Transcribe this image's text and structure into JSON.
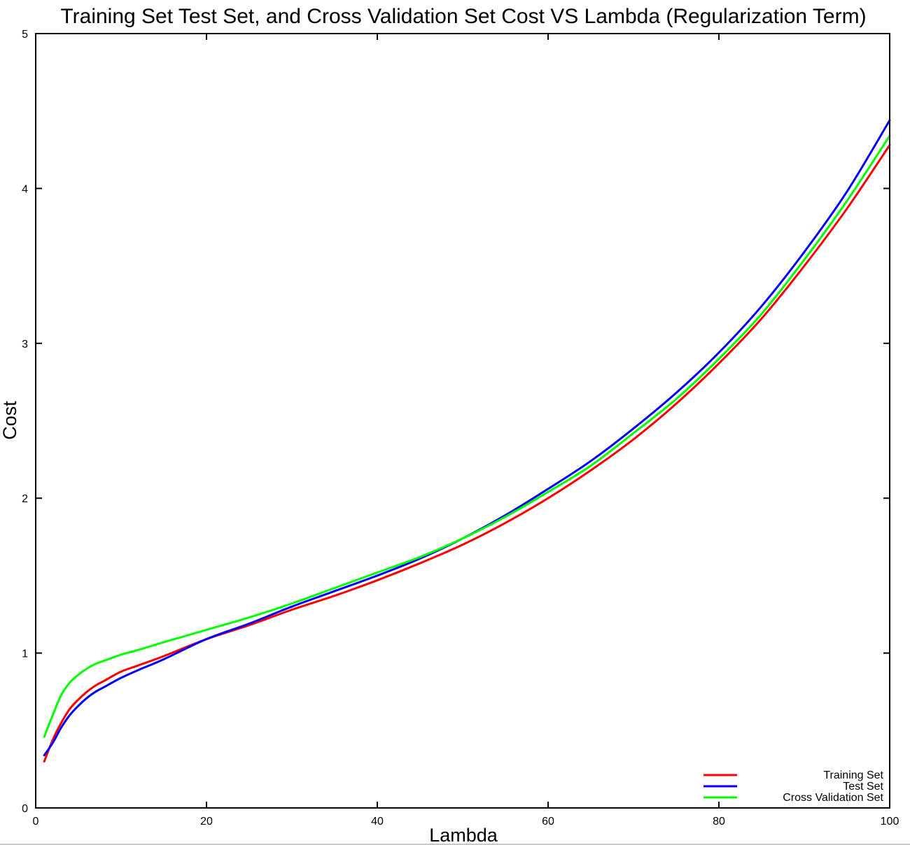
{
  "chart_data": {
    "type": "line",
    "title": "Training Set Test Set, and Cross Validation Set Cost VS Lambda (Regularization Term)",
    "xlabel": "Lambda",
    "ylabel": "Cost",
    "xlim": [
      0,
      100
    ],
    "ylim": [
      0,
      5
    ],
    "xticks": [
      0,
      20,
      40,
      60,
      80,
      100
    ],
    "yticks": [
      0,
      1,
      2,
      3,
      4,
      5
    ],
    "xtick_labels": [
      "0",
      "20",
      "40",
      "60",
      "80",
      "100"
    ],
    "ytick_labels": [
      "0",
      "1",
      "2",
      "3",
      "4",
      "5"
    ],
    "grid": false,
    "legend_position": "bottom-right",
    "x": [
      1,
      2,
      3,
      4,
      5,
      6,
      7,
      8,
      10,
      12,
      15,
      20,
      25,
      30,
      35,
      40,
      45,
      50,
      55,
      60,
      65,
      70,
      75,
      80,
      85,
      90,
      95,
      100
    ],
    "series": [
      {
        "name": "Training Set",
        "color": "#ff0000",
        "values": [
          0.3,
          0.44,
          0.55,
          0.64,
          0.7,
          0.75,
          0.79,
          0.82,
          0.88,
          0.92,
          0.98,
          1.09,
          1.18,
          1.28,
          1.37,
          1.47,
          1.58,
          1.7,
          1.84,
          2.0,
          2.18,
          2.38,
          2.61,
          2.87,
          3.16,
          3.5,
          3.87,
          4.28
        ]
      },
      {
        "name": "Test Set",
        "color": "#0000ff",
        "values": [
          0.34,
          0.42,
          0.52,
          0.6,
          0.66,
          0.71,
          0.75,
          0.78,
          0.84,
          0.89,
          0.96,
          1.09,
          1.19,
          1.3,
          1.4,
          1.5,
          1.61,
          1.74,
          1.89,
          2.06,
          2.24,
          2.45,
          2.68,
          2.94,
          3.24,
          3.59,
          3.98,
          4.44
        ]
      },
      {
        "name": "Cross Validation Set",
        "color": "#00ff00",
        "values": [
          0.46,
          0.6,
          0.73,
          0.81,
          0.86,
          0.9,
          0.93,
          0.95,
          0.99,
          1.02,
          1.07,
          1.15,
          1.23,
          1.32,
          1.42,
          1.52,
          1.62,
          1.74,
          1.88,
          2.04,
          2.21,
          2.42,
          2.64,
          2.9,
          3.19,
          3.54,
          3.92,
          4.34
        ]
      }
    ]
  }
}
